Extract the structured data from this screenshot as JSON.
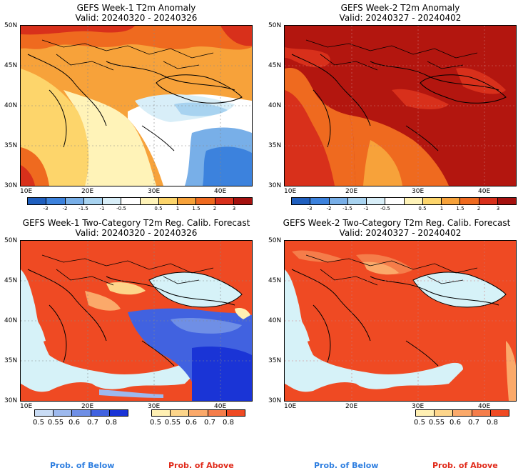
{
  "panels": {
    "p1": {
      "title": "GEFS Week-1 T2m Anomaly",
      "valid": "Valid: 20240320 - 20240326",
      "icon": "temperature-anomaly-map"
    },
    "p2": {
      "title": "GEFS Week-2 T2m Anomaly",
      "valid": "Valid: 20240327 - 20240402",
      "icon": "temperature-anomaly-map"
    },
    "p3": {
      "title": "GEFS Week-1 Two-Category T2m Reg. Calib. Forecast",
      "valid": "Valid: 20240320 - 20240326",
      "icon": "probability-forecast-map"
    },
    "p4": {
      "title": "GEFS Week-2 Two-Category T2m Reg. Calib. Forecast",
      "valid": "Valid: 20240327 - 20240402",
      "icon": "probability-forecast-map"
    }
  },
  "axes": {
    "lat_labels": [
      "50N",
      "45N",
      "40N",
      "35N",
      "30N"
    ],
    "lon_labels": [
      "10E",
      "20E",
      "30E",
      "40E"
    ]
  },
  "anomaly_colorbar": {
    "labels": [
      "-3",
      "-2",
      "-1.5",
      "-1",
      "-0.5",
      "0.5",
      "1",
      "1.5",
      "2",
      "3"
    ],
    "colors": [
      "#1f5fbf",
      "#3c82dd",
      "#78afe8",
      "#a8d3f0",
      "#d8eef8",
      "#ffffff",
      "#fff3b8",
      "#fdd56b",
      "#f7a23a",
      "#ef6a1f",
      "#d8301b",
      "#a5110f"
    ]
  },
  "prob_below_colorbar": {
    "labels": [
      "0.5",
      "0.55",
      "0.6",
      "0.7",
      "0.8"
    ],
    "colors": [
      "#c9dcf5",
      "#9db9ee",
      "#6f8fe6",
      "#4162e0",
      "#1a34d6"
    ]
  },
  "prob_above_colorbar": {
    "labels": [
      "0.5",
      "0.55",
      "0.6",
      "0.7",
      "0.8"
    ],
    "colors": [
      "#fff0b3",
      "#fdd58a",
      "#fba96a",
      "#f57d4a",
      "#ef4a23"
    ]
  },
  "legend": {
    "below_label": "Prob. of Below",
    "above_label": "Prob. of Above",
    "below_color": "#2f7fe0",
    "above_color": "#e02a1a"
  },
  "colors": {
    "sea_prob": "#d6f2f8",
    "land_dark_red": "#b3160f",
    "prob_red": "#ef4a23"
  }
}
